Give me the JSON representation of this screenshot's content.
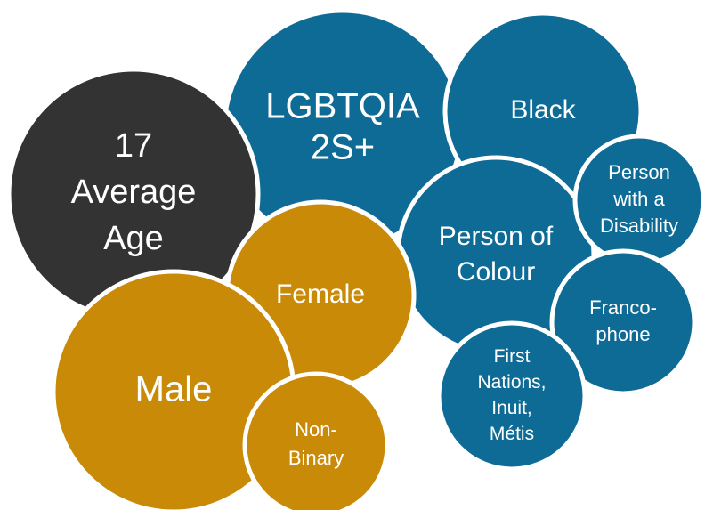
{
  "nodes": [
    {
      "lines": [
        "LGBTQIA",
        "2S+"
      ]
    },
    {
      "lines": [
        "Black"
      ]
    },
    {
      "lines": [
        "17",
        "Average",
        "Age"
      ]
    },
    {
      "lines": [
        "Person of",
        "Colour"
      ]
    },
    {
      "lines": [
        "Person",
        "with a",
        "Disability"
      ]
    },
    {
      "lines": [
        "Franco-",
        "phone"
      ]
    },
    {
      "lines": [
        "First",
        "Nations,",
        "Inuit,",
        "Métis"
      ]
    },
    {
      "lines": [
        "Female"
      ]
    },
    {
      "lines": [
        "Male"
      ]
    },
    {
      "lines": [
        "Non-",
        "Binary"
      ]
    }
  ]
}
